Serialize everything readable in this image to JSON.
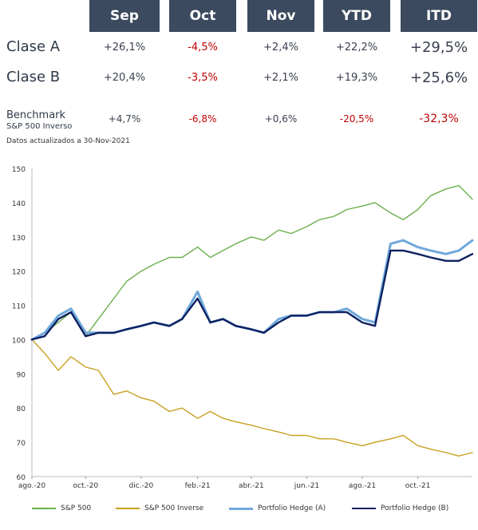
{
  "table": {
    "columns": [
      "Sep",
      "Oct",
      "Nov",
      "YTD",
      "ITD"
    ],
    "rows": [
      {
        "label": "Clase A",
        "values": [
          "+26,1%",
          "-4,5%",
          "+2,4%",
          "+22,2%",
          "+29,5%"
        ]
      },
      {
        "label": "Clase B",
        "values": [
          "+20,4%",
          "-3,5%",
          "+2,1%",
          "+19,3%",
          "+25,6%"
        ]
      }
    ],
    "benchmark": {
      "label": "Benchmark",
      "sublabel": "S&P 500 Inverso",
      "values": [
        "+4,7%",
        "-6,8%",
        "+0,6%",
        "-20,5%",
        "-32,3%"
      ]
    },
    "header_color": "#3b4a5f",
    "negative_color": "#c00000"
  },
  "note": "Datos actualizados a 30-Nov-2021",
  "chart_data": {
    "type": "line",
    "x_ticks": [
      "ago.-20",
      "oct.-20",
      "dic.-20",
      "feb.-21",
      "abr.-21",
      "jun.-21",
      "ago.-21",
      "oct.-21"
    ],
    "ylim": [
      60,
      150
    ],
    "y_ticks": [
      60,
      70,
      80,
      90,
      100,
      110,
      120,
      130,
      140,
      150
    ],
    "x": [
      "2020-08-03",
      "2020-08-17",
      "2020-09-01",
      "2020-09-15",
      "2020-10-01",
      "2020-10-15",
      "2020-11-01",
      "2020-11-15",
      "2020-12-01",
      "2020-12-15",
      "2021-01-01",
      "2021-01-15",
      "2021-02-01",
      "2021-02-15",
      "2021-03-01",
      "2021-03-15",
      "2021-04-01",
      "2021-04-15",
      "2021-05-01",
      "2021-05-15",
      "2021-06-01",
      "2021-06-15",
      "2021-07-01",
      "2021-07-15",
      "2021-08-01",
      "2021-08-15",
      "2021-09-01",
      "2021-09-15",
      "2021-10-01",
      "2021-10-15",
      "2021-11-01",
      "2021-11-15",
      "2021-11-30"
    ],
    "series": [
      {
        "name": "S&P 500",
        "color": "#6ab04c",
        "width": 1.4,
        "values": [
          100,
          102,
          105,
          108,
          101,
          106,
          112,
          117,
          120,
          122,
          124,
          124,
          127,
          124,
          126,
          128,
          130,
          129,
          132,
          131,
          133,
          135,
          136,
          138,
          139,
          140,
          137,
          135,
          138,
          142,
          144,
          145,
          141
        ]
      },
      {
        "name": "S&P 500 Inverse",
        "color": "#c8a020",
        "width": 1.4,
        "values": [
          100,
          96,
          91,
          95,
          92,
          91,
          84,
          85,
          83,
          82,
          79,
          80,
          77,
          79,
          77,
          76,
          75,
          74,
          73,
          72,
          72,
          71,
          71,
          70,
          69,
          70,
          71,
          72,
          69,
          68,
          67,
          66,
          67
        ]
      },
      {
        "name": "Portfolio Hedge (A)",
        "color": "#6fa8dc",
        "width": 3,
        "values": [
          100,
          102,
          107,
          109,
          102,
          102,
          102,
          103,
          104,
          105,
          104,
          106,
          114,
          105,
          106,
          104,
          103,
          102,
          106,
          107,
          107,
          108,
          108,
          109,
          106,
          105,
          128,
          129,
          127,
          126,
          125,
          126,
          129
        ]
      },
      {
        "name": "Portfolio Hedge (B)",
        "color": "#0d2160",
        "width": 2.4,
        "values": [
          100,
          101,
          106,
          108,
          101,
          102,
          102,
          103,
          104,
          105,
          104,
          106,
          112,
          105,
          106,
          104,
          103,
          102,
          105,
          107,
          107,
          108,
          108,
          108,
          105,
          104,
          126,
          126,
          125,
          124,
          123,
          123,
          125
        ]
      }
    ]
  }
}
